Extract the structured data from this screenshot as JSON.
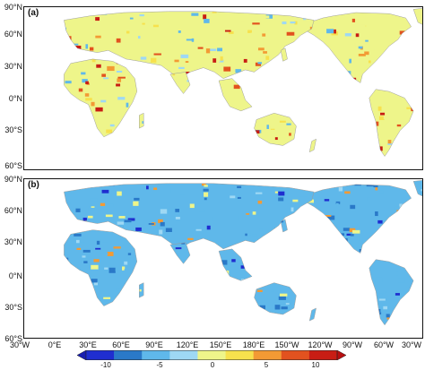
{
  "panels": [
    {
      "id": "a",
      "label": "(a)"
    },
    {
      "id": "b",
      "label": "(b)"
    }
  ],
  "latitude_labels": [
    "90°N",
    "60°N",
    "30°N",
    "0°N",
    "30°S",
    "60°S"
  ],
  "longitude_labels": [
    "30°W",
    "0°E",
    "30°E",
    "60°E",
    "90°E",
    "120°E",
    "150°E",
    "180°E",
    "150°W",
    "120°W",
    "90°W",
    "60°W",
    "30°W"
  ],
  "colorbar": {
    "ticks": [
      "-10",
      "-5",
      "0",
      "5",
      "10"
    ],
    "colors": [
      "#1f2ed0",
      "#2a79c8",
      "#5fb8ea",
      "#9ed8f4",
      "#eef58a",
      "#f7e14d",
      "#f39a34",
      "#e2521f",
      "#c81d14"
    ],
    "arrow_left": "#1a1fb0",
    "arrow_right": "#b80f10"
  }
}
